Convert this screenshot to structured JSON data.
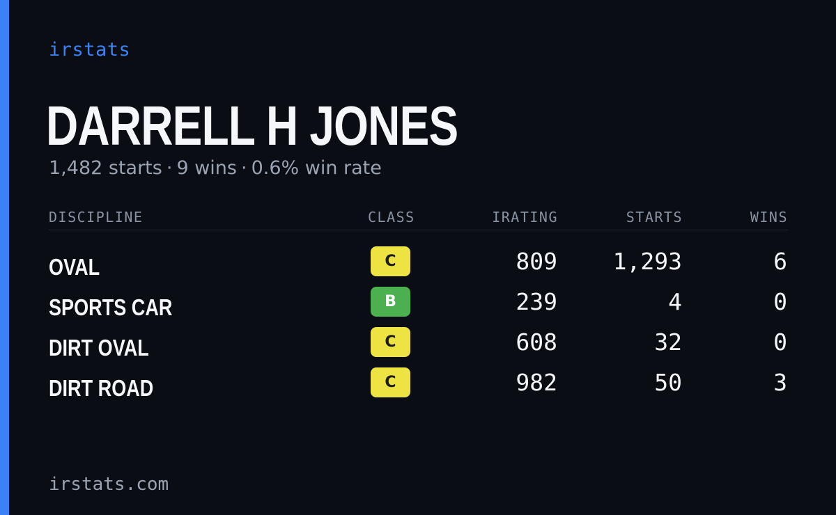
{
  "brand": "irstats",
  "driver": {
    "name": "DARRELL H JONES",
    "starts_text": "1,482 starts",
    "wins_text": "9 wins",
    "win_rate_text": "0.6% win rate",
    "separator": "·"
  },
  "table": {
    "headers": {
      "discipline": "DISCIPLINE",
      "class": "CLASS",
      "irating": "IRATING",
      "starts": "STARTS",
      "wins": "WINS"
    },
    "rows": [
      {
        "discipline": "OVAL",
        "class": "C",
        "irating": "809",
        "starts": "1,293",
        "wins": "6"
      },
      {
        "discipline": "SPORTS CAR",
        "class": "B",
        "irating": "239",
        "starts": "4",
        "wins": "0"
      },
      {
        "discipline": "DIRT OVAL",
        "class": "C",
        "irating": "608",
        "starts": "32",
        "wins": "0"
      },
      {
        "discipline": "DIRT ROAD",
        "class": "C",
        "irating": "982",
        "starts": "50",
        "wins": "3"
      }
    ]
  },
  "footer": "irstats.com",
  "colors": {
    "background": "#0a0d14",
    "accent": "#3b82f6",
    "class_c": "#ede443",
    "class_b": "#4caf50"
  }
}
